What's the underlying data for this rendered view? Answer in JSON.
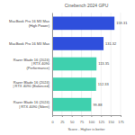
{
  "chart_data": {
    "type": "bar",
    "orientation": "horizontal",
    "title": "Cinebench 2024 GPU",
    "x_label": "Score - Higher is better",
    "categories": [
      "MacBook Pro 16 M3 Max (High Power)",
      "MacBook Pro 16 M3 Max",
      "Razer Blade 16 (2024) | RTX 4090 (Performance)",
      "Razer Blade 16 (2024) | RTX 4090 (Balanced)",
      "Razer Blade 16 (2024) | RTX 4090 (Silent)"
    ],
    "values": [
      159.31,
      131.32,
      113.35,
      112.33,
      99.88
    ],
    "colors": [
      "#2f4fdc",
      "#2f4fdc",
      "#3fd0ae",
      "#3fd0ae",
      "#3fd0ae"
    ],
    "xlim": [
      0,
      175
    ],
    "xticks": [
      0,
      25,
      50,
      75,
      100,
      125,
      150,
      175
    ],
    "grid": true,
    "data_labels": true
  }
}
